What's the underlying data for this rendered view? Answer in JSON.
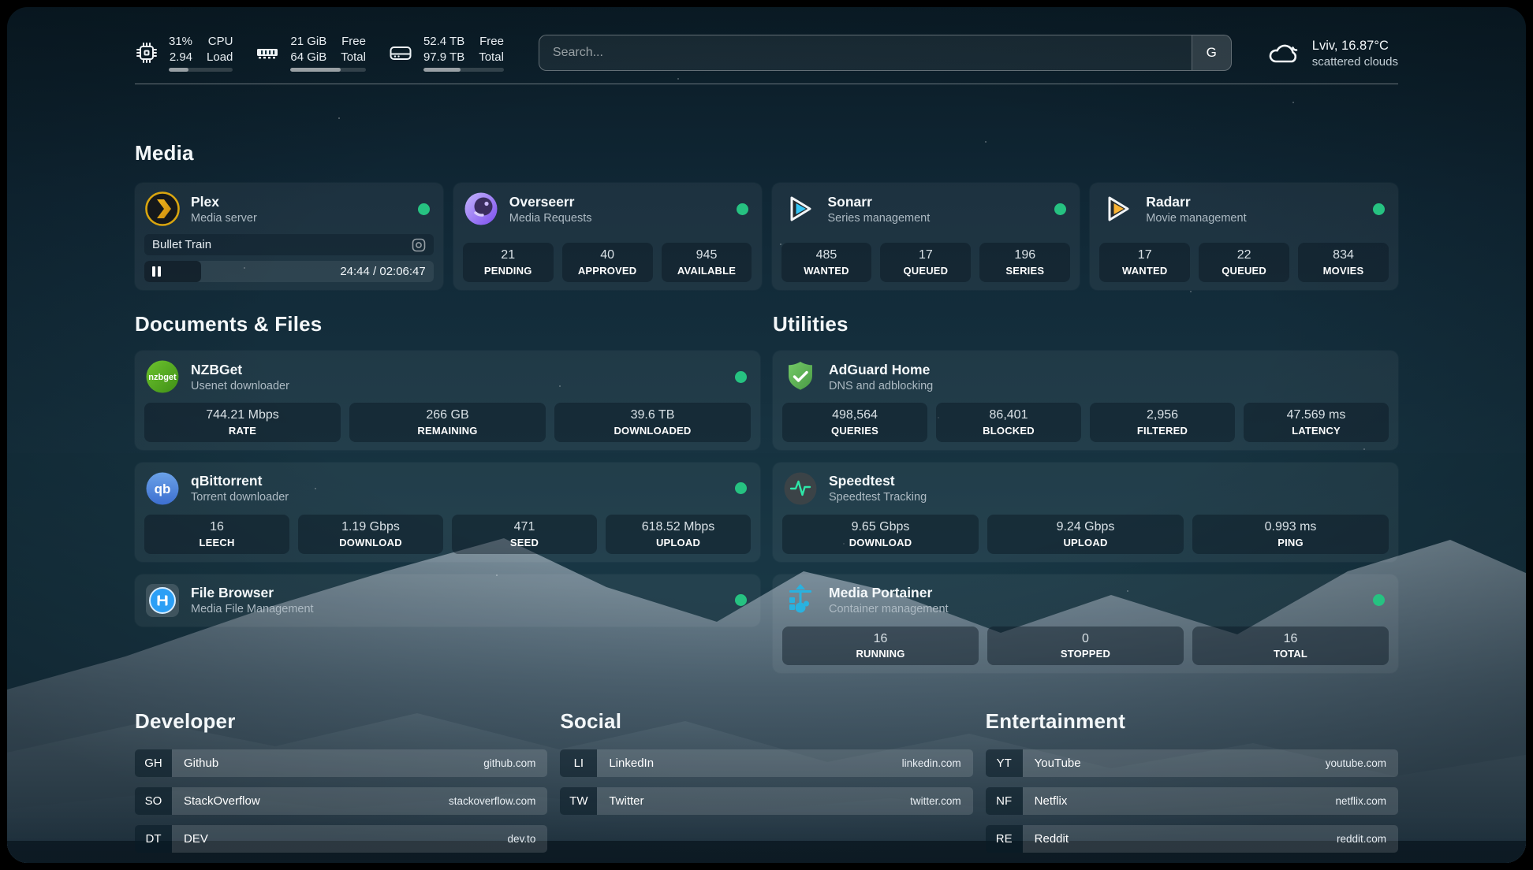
{
  "header": {
    "widgets": [
      {
        "icon": "cpu-icon",
        "values": [
          "31%",
          "2.94"
        ],
        "labels": [
          "CPU",
          "Load"
        ],
        "progress": 31
      },
      {
        "icon": "memory-icon",
        "values": [
          "21 GiB",
          "64 GiB"
        ],
        "labels": [
          "Free",
          "Total"
        ],
        "progress": 67
      },
      {
        "icon": "disk-icon",
        "values": [
          "52.4 TB",
          "97.9 TB"
        ],
        "labels": [
          "Free",
          "Total"
        ],
        "progress": 46
      }
    ],
    "search": {
      "placeholder": "Search...",
      "provider_button": "G"
    },
    "weather": {
      "icon": "cloud-icon",
      "summary": "Lviv, 16.87°C",
      "description": "scattered clouds"
    }
  },
  "sections": {
    "media": {
      "heading": "Media",
      "cards": [
        {
          "icon": "plex-icon",
          "title": "Plex",
          "subtitle": "Media server",
          "status": "online",
          "player": {
            "track": "Bullet Train",
            "time_display": "24:44 / 02:06:47",
            "progress_pct": 19.5
          }
        },
        {
          "icon": "overseerr-icon",
          "title": "Overseerr",
          "subtitle": "Media Requests",
          "status": "online",
          "stats": [
            {
              "value": "21",
              "label": "PENDING"
            },
            {
              "value": "40",
              "label": "APPROVED"
            },
            {
              "value": "945",
              "label": "AVAILABLE"
            }
          ]
        },
        {
          "icon": "sonarr-icon",
          "title": "Sonarr",
          "subtitle": "Series management",
          "status": "online",
          "stats": [
            {
              "value": "485",
              "label": "WANTED"
            },
            {
              "value": "17",
              "label": "QUEUED"
            },
            {
              "value": "196",
              "label": "SERIES"
            }
          ]
        },
        {
          "icon": "radarr-icon",
          "title": "Radarr",
          "subtitle": "Movie management",
          "status": "online",
          "stats": [
            {
              "value": "17",
              "label": "WANTED"
            },
            {
              "value": "22",
              "label": "QUEUED"
            },
            {
              "value": "834",
              "label": "MOVIES"
            }
          ]
        }
      ]
    },
    "documents": {
      "heading": "Documents & Files",
      "cards": [
        {
          "icon": "nzbget-icon",
          "title": "NZBGet",
          "subtitle": "Usenet downloader",
          "status": "online",
          "stats": [
            {
              "value": "744.21 Mbps",
              "label": "RATE"
            },
            {
              "value": "266 GB",
              "label": "REMAINING"
            },
            {
              "value": "39.6 TB",
              "label": "DOWNLOADED"
            }
          ]
        },
        {
          "icon": "qbittorrent-icon",
          "title": "qBittorrent",
          "subtitle": "Torrent downloader",
          "status": "online",
          "stats": [
            {
              "value": "16",
              "label": "LEECH"
            },
            {
              "value": "1.19 Gbps",
              "label": "DOWNLOAD"
            },
            {
              "value": "471",
              "label": "SEED"
            },
            {
              "value": "618.52 Mbps",
              "label": "UPLOAD"
            }
          ]
        },
        {
          "icon": "filebrowser-icon",
          "title": "File Browser",
          "subtitle": "Media File Management",
          "status": "online"
        }
      ]
    },
    "utilities": {
      "heading": "Utilities",
      "cards": [
        {
          "icon": "adguard-icon",
          "title": "AdGuard Home",
          "subtitle": "DNS and adblocking",
          "stats": [
            {
              "value": "498,564",
              "label": "QUERIES"
            },
            {
              "value": "86,401",
              "label": "BLOCKED"
            },
            {
              "value": "2,956",
              "label": "FILTERED"
            },
            {
              "value": "47.569 ms",
              "label": "LATENCY"
            }
          ]
        },
        {
          "icon": "speedtest-icon",
          "title": "Speedtest",
          "subtitle": "Speedtest Tracking",
          "stats": [
            {
              "value": "9.65 Gbps",
              "label": "DOWNLOAD"
            },
            {
              "value": "9.24 Gbps",
              "label": "UPLOAD"
            },
            {
              "value": "0.993 ms",
              "label": "PING"
            }
          ]
        },
        {
          "icon": "portainer-icon",
          "title": "Media Portainer",
          "subtitle": "Container management",
          "status": "online",
          "stats": [
            {
              "value": "16",
              "label": "RUNNING"
            },
            {
              "value": "0",
              "label": "STOPPED"
            },
            {
              "value": "16",
              "label": "TOTAL"
            }
          ]
        }
      ]
    },
    "bookmarks": [
      {
        "heading": "Developer",
        "links": [
          {
            "abbr": "GH",
            "name": "Github",
            "url": "github.com"
          },
          {
            "abbr": "SO",
            "name": "StackOverflow",
            "url": "stackoverflow.com"
          },
          {
            "abbr": "DT",
            "name": "DEV",
            "url": "dev.to"
          }
        ]
      },
      {
        "heading": "Social",
        "links": [
          {
            "abbr": "LI",
            "name": "LinkedIn",
            "url": "linkedin.com"
          },
          {
            "abbr": "TW",
            "name": "Twitter",
            "url": "twitter.com"
          }
        ]
      },
      {
        "heading": "Entertainment",
        "links": [
          {
            "abbr": "YT",
            "name": "YouTube",
            "url": "youtube.com"
          },
          {
            "abbr": "NF",
            "name": "Netflix",
            "url": "netflix.com"
          },
          {
            "abbr": "RE",
            "name": "Reddit",
            "url": "reddit.com"
          }
        ]
      }
    ]
  },
  "colors": {
    "status_online": "#26c281",
    "plex_gold": "#e5a00d",
    "sonarr_blue": "#35c5f4",
    "radarr_yellow": "#f9b234",
    "nzbget_green": "#54a722",
    "qbittorrent_blue": "#4a7fd4",
    "adguard_green": "#67b860",
    "speedtest_pulse": "#2ee6a8",
    "portainer_cyan": "#29b2e0",
    "filebrowser_blue": "#2b9ff5",
    "overseerr_purple": "#8b5cf6"
  }
}
